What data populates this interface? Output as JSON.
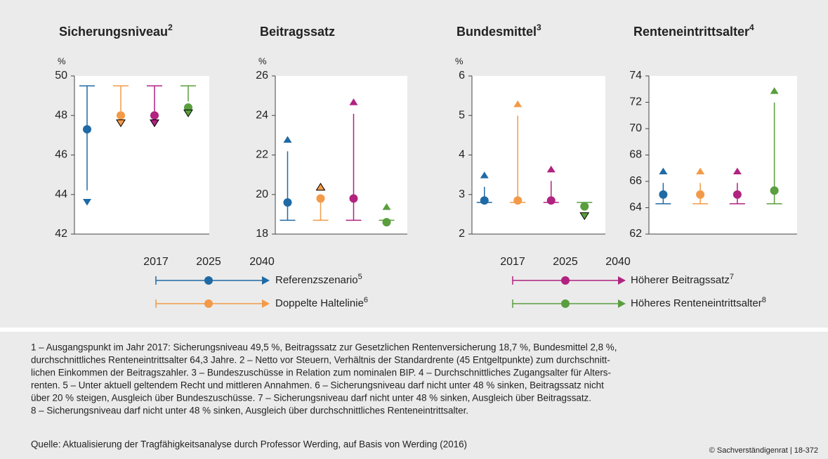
{
  "chart_data": [
    {
      "type": "range-arrow",
      "title": "Sicherungsniveau",
      "title_note": "2",
      "unit": "%",
      "ylim": [
        42,
        50
      ],
      "yticks": [
        42,
        44,
        46,
        48,
        50
      ],
      "series": [
        {
          "name": "Referenzszenario",
          "color": "#1f6aa5",
          "values": [
            49.5,
            47.3,
            44.0
          ]
        },
        {
          "name": "Doppelte Haltelinie",
          "color": "#f39a48",
          "values": [
            49.5,
            48.0,
            48.0
          ]
        },
        {
          "name": "Höherer Beitragssatz",
          "color": "#b0237f",
          "values": [
            49.5,
            48.0,
            48.0
          ]
        },
        {
          "name": "Höheres Renteneintrittsalter",
          "color": "#5a9e3e",
          "values": [
            49.5,
            48.4,
            48.5
          ]
        }
      ]
    },
    {
      "type": "range-arrow",
      "title": "Beitragssatz",
      "unit": "%",
      "ylim": [
        18,
        26
      ],
      "yticks": [
        18,
        20,
        22,
        24,
        26
      ],
      "series": [
        {
          "name": "Referenzszenario",
          "color": "#1f6aa5",
          "values": [
            18.7,
            19.6,
            22.4
          ]
        },
        {
          "name": "Doppelte Haltelinie",
          "color": "#f39a48",
          "values": [
            18.7,
            19.8,
            20.0
          ]
        },
        {
          "name": "Höherer Beitragssatz",
          "color": "#b0237f",
          "values": [
            18.7,
            19.8,
            24.3
          ]
        },
        {
          "name": "Höheres Renteneintrittsalter",
          "color": "#5a9e3e",
          "values": [
            18.7,
            18.6,
            19.0
          ]
        }
      ]
    },
    {
      "type": "range-arrow",
      "title": "Bundesmittel",
      "title_note": "3",
      "unit": "%",
      "ylim": [
        2,
        6
      ],
      "yticks": [
        2,
        3,
        4,
        5,
        6
      ],
      "series": [
        {
          "name": "Referenzszenario",
          "color": "#1f6aa5",
          "values": [
            2.8,
            2.85,
            3.3
          ]
        },
        {
          "name": "Doppelte Haltelinie",
          "color": "#f39a48",
          "values": [
            2.8,
            2.85,
            5.1
          ]
        },
        {
          "name": "Höherer Beitragssatz",
          "color": "#b0237f",
          "values": [
            2.8,
            2.85,
            3.45
          ]
        },
        {
          "name": "Höheres Renteneintrittsalter",
          "color": "#5a9e3e",
          "values": [
            2.8,
            2.7,
            2.65
          ]
        }
      ]
    },
    {
      "type": "range-arrow",
      "title": "Renteneintrittsalter",
      "title_note": "4",
      "ylim": [
        62,
        74
      ],
      "yticks": [
        62,
        64,
        66,
        68,
        70,
        72,
        74
      ],
      "series": [
        {
          "name": "Referenzszenario",
          "color": "#1f6aa5",
          "values": [
            64.3,
            65.0,
            66.2
          ]
        },
        {
          "name": "Doppelte Haltelinie",
          "color": "#f39a48",
          "values": [
            64.3,
            65.0,
            66.2
          ]
        },
        {
          "name": "Höherer Beitragssatz",
          "color": "#b0237f",
          "values": [
            64.3,
            65.0,
            66.2
          ]
        },
        {
          "name": "Höheres Renteneintrittsalter",
          "color": "#5a9e3e",
          "values": [
            64.3,
            65.3,
            72.3
          ]
        }
      ]
    }
  ],
  "legend": {
    "years": [
      "2017",
      "2025",
      "2040"
    ],
    "entries": [
      {
        "name": "Referenzszenario",
        "note": "5"
      },
      {
        "name": "Doppelte Haltelinie",
        "note": "6"
      },
      {
        "name": "Höherer Beitragssatz",
        "note": "7"
      },
      {
        "name": "Höheres Renteneintrittsalter",
        "note": "8"
      }
    ]
  },
  "footnotes": [
    "1 – Ausgangspunkt im Jahr 2017: Sicherungsniveau 49,5 %, Beitragssatz zur Gesetzlichen Rentenversicherung 18,7 %, Bundesmittel 2,8 %,",
    "durchschnittliches Renteneintrittsalter 64,3 Jahre.  2 – Netto vor Steuern, Verhältnis der Standardrente (45 Entgeltpunkte) zum durchschnitt-",
    "lichen Einkommen der Beitragszahler.  3 – Bundeszuschüsse in Relation zum nominalen BIP.  4 – Durchschnittliches Zugangsalter für Alters-",
    "renten.  5 – Unter aktuell geltendem Recht und mittleren Annahmen.  6 – Sicherungsniveau darf nicht unter 48 % sinken, Beitragssatz nicht",
    "über 20 % steigen, Ausgleich über Bundeszuschüsse.  7 – Sicherungsniveau darf nicht unter 48 % sinken, Ausgleich über Beitragssatz.",
    "8 – Sicherungsniveau darf nicht unter 48 % sinken, Ausgleich über durchschnittliches Renteneintrittsalter."
  ],
  "source": "Quelle: Aktualisierung der Tragfähigkeitsanalyse durch Professor Werding, auf Basis von Werding (2016)",
  "credit": "© Sachverständigenrat | 18-372"
}
